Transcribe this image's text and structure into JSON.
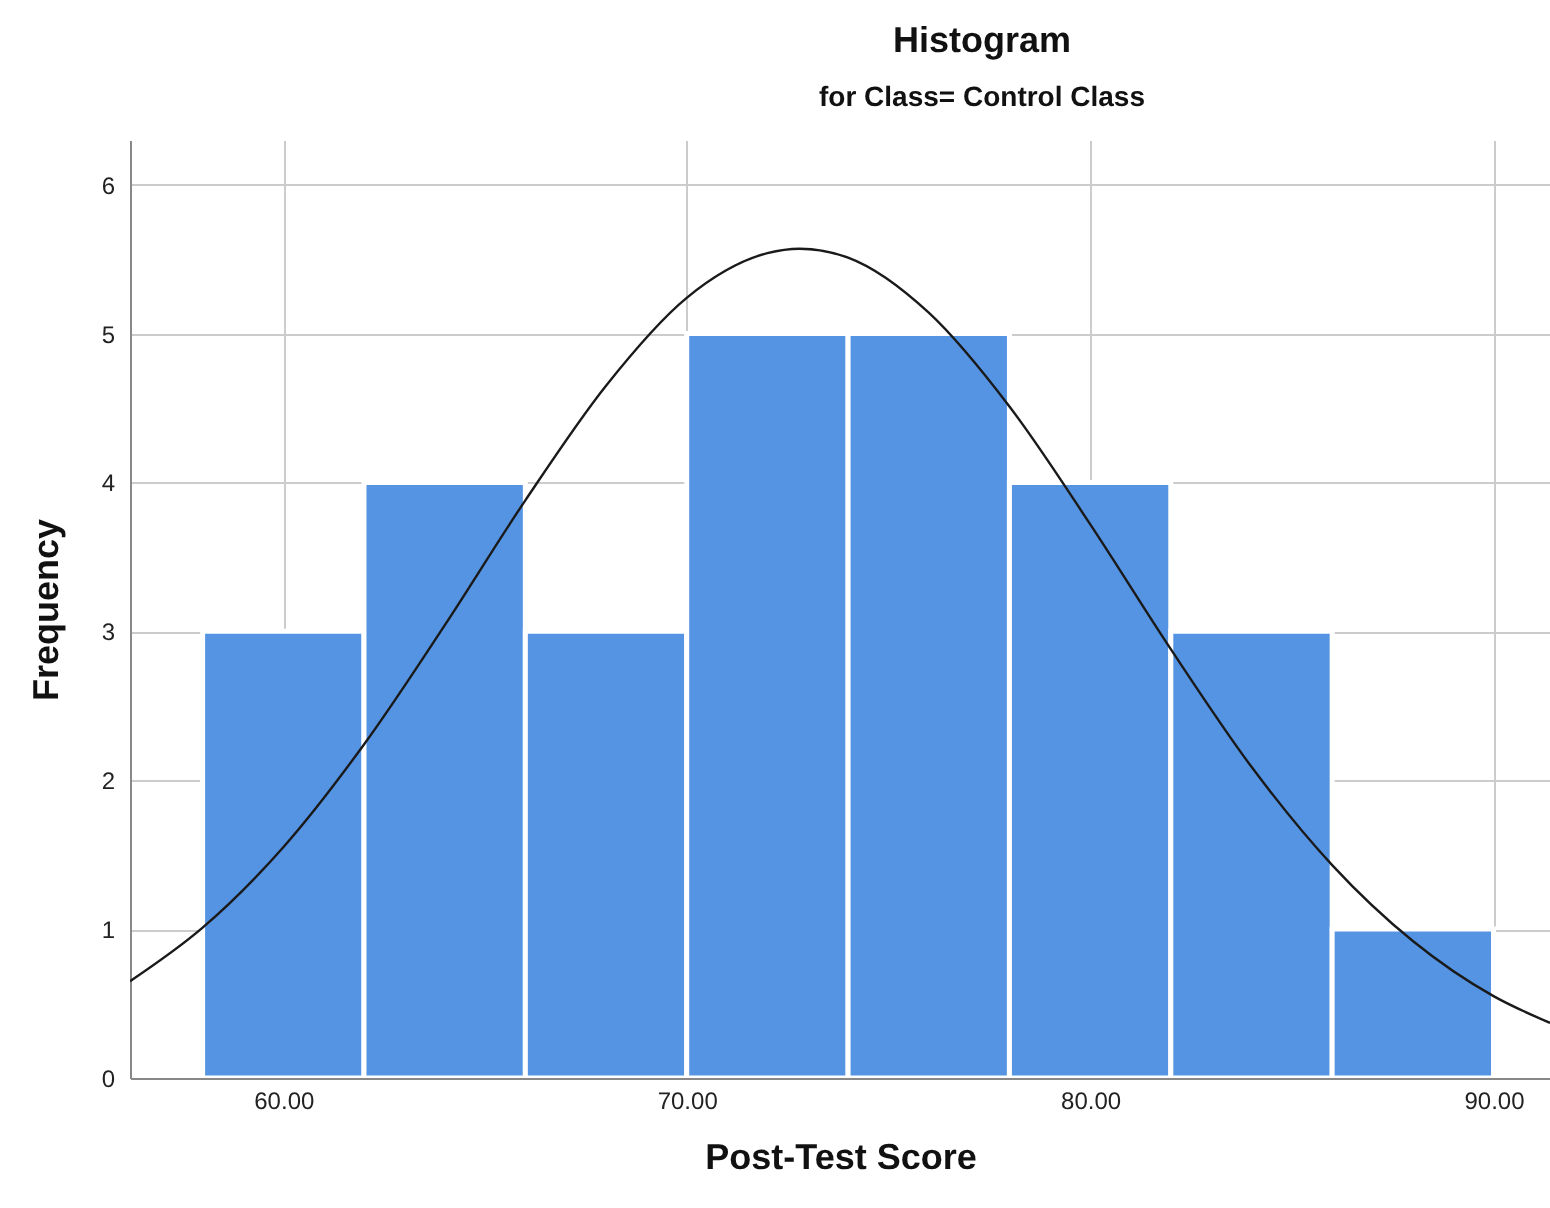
{
  "chart_data": {
    "type": "histogram",
    "title": "Histogram",
    "subtitle": "for Class= Control Class",
    "xlabel": "Post-Test Score",
    "ylabel": "Frequency",
    "bins": [
      58,
      62,
      66,
      70,
      74,
      78,
      82,
      86,
      90
    ],
    "values": [
      3,
      4,
      3,
      5,
      5,
      4,
      3,
      1
    ],
    "color": "#5594e3",
    "series": [
      {
        "type": "line",
        "color": "#1a1a1a",
        "x": [
          56.2,
          58,
          60,
          62,
          64,
          66,
          68,
          70,
          72,
          72.8,
          74,
          76,
          78,
          80,
          82,
          84,
          86,
          88,
          90,
          91.4
        ],
        "values": [
          0.65,
          1.01,
          1.55,
          2.24,
          3.04,
          3.88,
          4.65,
          5.24,
          5.54,
          5.57,
          5.51,
          5.14,
          4.51,
          3.72,
          2.88,
          2.09,
          1.43,
          0.92,
          0.55,
          0.37
        ]
      }
    ],
    "xlim": [
      56.2,
      91.4
    ],
    "ylim": [
      0,
      6.3
    ],
    "xticks": [
      {
        "value": 60,
        "label": "60.00"
      },
      {
        "value": 70,
        "label": "70.00"
      },
      {
        "value": 80,
        "label": "80.00"
      },
      {
        "value": 90,
        "label": "90.00"
      }
    ],
    "yticks": [
      0,
      1,
      2,
      3,
      4,
      5,
      6
    ],
    "grid": true
  }
}
